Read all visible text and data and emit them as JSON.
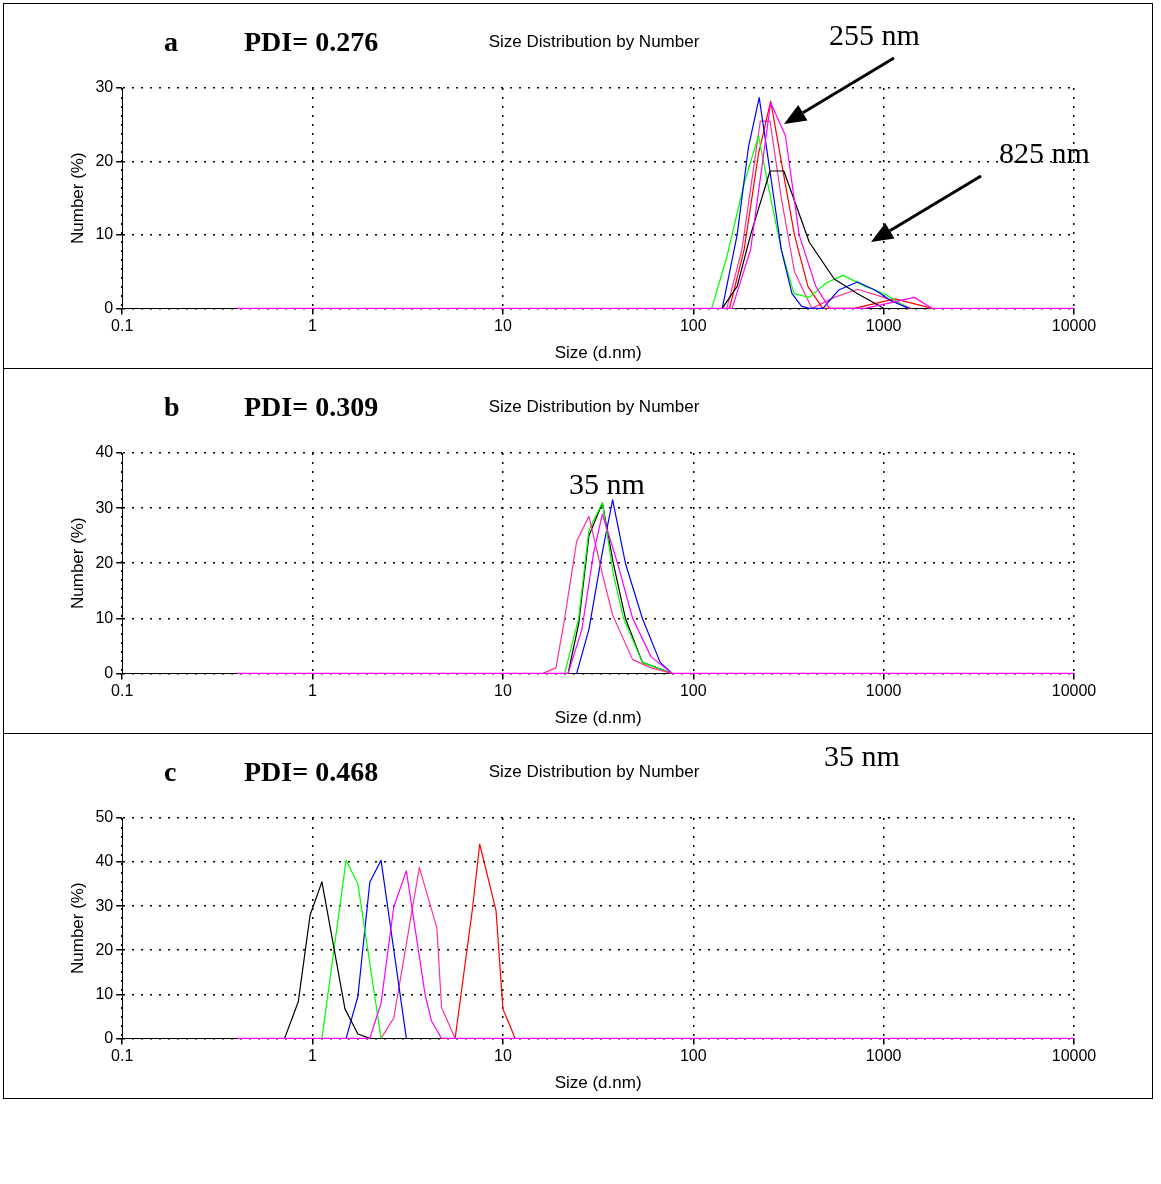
{
  "chart_data": [
    {
      "type": "line",
      "title": "Size Distribution by Number",
      "xlabel": "Size (d.nm)",
      "ylabel": "Number (%)",
      "annotations": [
        "a",
        "PDI= 0.276",
        "255 nm",
        "825 nm"
      ],
      "log": "x",
      "xlim": [
        0.1,
        10000
      ],
      "xticks": [
        0.1,
        1,
        10,
        100,
        1000,
        10000
      ],
      "ylim": [
        0,
        30
      ],
      "yticks": [
        0,
        10,
        20,
        30
      ],
      "grid": true,
      "legend": false,
      "marker": "none",
      "line_style": "solid",
      "series": [
        {
          "color": "#ff00ff",
          "x": [
            0.4,
            160,
            200,
            255,
            305,
            360,
            440,
            520,
            800,
            1450,
            1800,
            10000
          ],
          "values": [
            0,
            0,
            8,
            28,
            23.5,
            10,
            3,
            0,
            0,
            1.5,
            0,
            0
          ]
        },
        {
          "color": "#000000",
          "x": [
            142,
            170,
            200,
            253,
            299,
            407,
            550,
            730,
            1006
          ],
          "values": [
            0,
            3,
            10,
            18.7,
            18.7,
            9,
            4,
            2,
            0
          ]
        },
        {
          "color": "#0000ff",
          "x": [
            142,
            170,
            195,
            222,
            255,
            290,
            330,
            370,
            407,
            480,
            580,
            730,
            900,
            1100,
            1355
          ],
          "values": [
            0,
            10,
            22,
            28.7,
            18,
            8,
            2,
            0.3,
            0,
            0,
            2.5,
            3.6,
            2.5,
            1,
            0
          ]
        },
        {
          "color": "#00ff00",
          "x": [
            125,
            150,
            185,
            220,
            255,
            290,
            338,
            407,
            500,
            614,
            800,
            1006,
            1355
          ],
          "values": [
            0,
            7,
            17,
            23.5,
            15,
            8,
            2,
            1.5,
            3.5,
            4.5,
            3,
            2,
            0
          ]
        },
        {
          "color": "#ff0000",
          "x": [
            155,
            185,
            220,
            255,
            290,
            340,
            400,
            479,
            700,
            1150,
            1800
          ],
          "values": [
            0,
            8,
            21,
            28.2,
            20,
            10,
            3,
            0,
            0,
            1.3,
            0
          ]
        },
        {
          "color": "#ff3399",
          "x": [
            150,
            180,
            225,
            253,
            290,
            340,
            420,
            550,
            730,
            1000,
            1400
          ],
          "values": [
            0,
            8,
            25.5,
            25.5,
            15,
            5,
            0,
            1.5,
            2.6,
            1.5,
            0
          ]
        }
      ]
    },
    {
      "type": "line",
      "title": "Size Distribution by Number",
      "xlabel": "Size (d.nm)",
      "ylabel": "Number (%)",
      "annotations": [
        "b",
        "PDI= 0.309",
        "35 nm"
      ],
      "log": "x",
      "xlim": [
        0.1,
        10000
      ],
      "xticks": [
        0.1,
        1,
        10,
        100,
        1000,
        10000
      ],
      "ylim": [
        0,
        40
      ],
      "yticks": [
        0,
        10,
        20,
        30,
        40
      ],
      "grid": true,
      "legend": false,
      "marker": "none",
      "line_style": "solid",
      "series": [
        {
          "color": "#ff00ff",
          "x": [
            0.4,
            22,
            26,
            30,
            33.3,
            40,
            48,
            60,
            77.4,
            10000
          ],
          "values": [
            0,
            0,
            8,
            22,
            28.9,
            20,
            10,
            3,
            0,
            0
          ]
        },
        {
          "color": "#ff3399",
          "x": [
            16.2,
            19,
            21.1,
            24.4,
            28.3,
            33.3,
            37.7,
            48,
            60,
            77.4
          ],
          "values": [
            0,
            1,
            10,
            24,
            28.5,
            18,
            10.6,
            2.5,
            1,
            0
          ]
        },
        {
          "color": "#00ff00",
          "x": [
            21.1,
            25,
            28.3,
            33.3,
            38,
            43,
            54,
            77.4
          ],
          "values": [
            0,
            10,
            26,
            31,
            18,
            10,
            2,
            0
          ]
        },
        {
          "color": "#000000",
          "x": [
            22,
            25,
            28.3,
            33.3,
            38,
            44,
            54,
            77.4
          ],
          "values": [
            0,
            9,
            25,
            30.9,
            20,
            10,
            2,
            0
          ]
        },
        {
          "color": "#0000ff",
          "x": [
            24.4,
            28.3,
            33.3,
            37.7,
            44,
            54,
            67,
            77.4
          ],
          "values": [
            0,
            8,
            22,
            31.5,
            20,
            10,
            2,
            0
          ]
        }
      ]
    },
    {
      "type": "line",
      "title": "Size Distribution by Number",
      "xlabel": "Size (d.nm)",
      "ylabel": "Number (%)",
      "annotations": [
        "c",
        "PDI= 0.468",
        "35 nm"
      ],
      "log": "x",
      "xlim": [
        0.1,
        10000
      ],
      "xticks": [
        0.1,
        1,
        10,
        100,
        1000,
        10000
      ],
      "ylim": [
        0,
        50
      ],
      "yticks": [
        0,
        10,
        20,
        30,
        40,
        50
      ],
      "grid": true,
      "legend": false,
      "marker": "none",
      "line_style": "solid",
      "series": [
        {
          "color": "#ff00ff",
          "x": [
            0.4,
            2.0,
            2.29,
            2.67,
            3.11,
            3.9,
            4.21,
            4.76,
            10000
          ],
          "values": [
            0,
            0,
            8,
            29.8,
            38,
            10,
            4,
            0,
            0
          ]
        },
        {
          "color": "#000000",
          "x": [
            0.713,
            0.841,
            0.971,
            1.12,
            1.48,
            1.73,
            2.0
          ],
          "values": [
            0,
            8.3,
            28,
            35.5,
            6.7,
            1,
            0
          ]
        },
        {
          "color": "#00ff00",
          "x": [
            1.12,
            1.5,
            1.73,
            2.29
          ],
          "values": [
            0,
            40.4,
            35.1,
            0
          ]
        },
        {
          "color": "#0000ff",
          "x": [
            1.5,
            1.73,
            2.0,
            2.29,
            3.11
          ],
          "values": [
            0,
            9.5,
            35.5,
            40.4,
            0
          ]
        },
        {
          "color": "#ff3399",
          "x": [
            2.29,
            2.67,
            3.64,
            4.5,
            4.76,
            5.61
          ],
          "values": [
            0,
            4.6,
            38.8,
            25,
            7,
            0
          ]
        },
        {
          "color": "#ff0000",
          "x": [
            5.61,
            6.9,
            7.55,
            9.2,
            10,
            11.6
          ],
          "values": [
            0,
            29,
            44.1,
            29,
            6.7,
            0
          ]
        }
      ]
    }
  ]
}
